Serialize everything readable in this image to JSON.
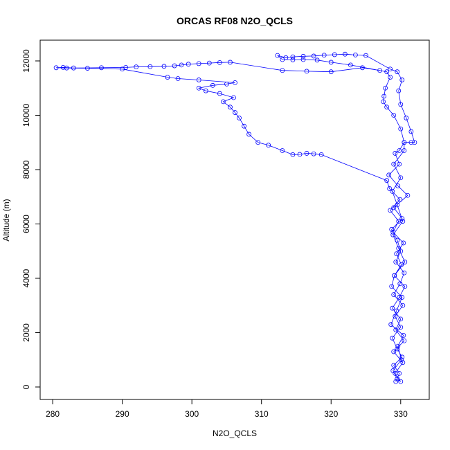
{
  "chart_data": {
    "type": "scatter",
    "connected": true,
    "title": "ORCAS RF08 N2O_QCLS",
    "xlabel": "N2O_QCLS",
    "ylabel": "Altitude (m)",
    "color": "#0000ff",
    "xlim": [
      278.2,
      334.1
    ],
    "ylim": [
      -459,
      12764
    ],
    "xticks": [
      280,
      290,
      300,
      310,
      320,
      330
    ],
    "yticks": [
      0,
      2000,
      4000,
      6000,
      8000,
      10000,
      12000
    ],
    "x": [
      329.3,
      329.8,
      329.0,
      330.2,
      329.5,
      328.8,
      330.0,
      329.2,
      330.3,
      329.0,
      329.9,
      330.5,
      329.3,
      330.0,
      329.5,
      328.7,
      330.2,
      329.0,
      331.0,
      329.6,
      328.3,
      329.8,
      329.2,
      329.8,
      330.5,
      331.5,
      332.0,
      331.5,
      330.8,
      330.0,
      329.7,
      330.2,
      329.5,
      328.5,
      325,
      323.5,
      322,
      320.5,
      319,
      317.5,
      316,
      314.5,
      313.5,
      312.3,
      313,
      314.5,
      316,
      318,
      320,
      322.8,
      328,
      328.5,
      327.8,
      327.6,
      327.5,
      328,
      329,
      330,
      330.5,
      330.5,
      329.0,
      330.0,
      328.8,
      329.5,
      330.3,
      328.9,
      329.7,
      330.6,
      329.1,
      328.7,
      330.2,
      329.4,
      328.6,
      330.4,
      329.6,
      330.1,
      328.9,
      329.5,
      330.0,
      329.2,
      330.3,
      329.0,
      330.5,
      329.3,
      330.0,
      328.8,
      329.8,
      330.6,
      329.1,
      330.1,
      329.4,
      330.4,
      328.9,
      329.7,
      328.5,
      329.9,
      328.4,
      328.0,
      318.6,
      317.5,
      316.5,
      315.5,
      314.5,
      313,
      311,
      309.5,
      308.2,
      307.5,
      306.8,
      306.2,
      305.5,
      304.5,
      306,
      304,
      302,
      301,
      303,
      305,
      306.2,
      301,
      298,
      296.5,
      290,
      285,
      282,
      280.5,
      281.5,
      283,
      287,
      290.5,
      292,
      294,
      296,
      297.5,
      298.5,
      299.5,
      301,
      302.5,
      304,
      305.5,
      313,
      316.5,
      320,
      324.5,
      327
    ],
    "values": [
      200,
      500,
      800,
      1100,
      1400,
      1800,
      2200,
      2600,
      3000,
      3400,
      3800,
      4200,
      4600,
      5000,
      5400,
      5800,
      6200,
      6600,
      7050,
      7400,
      7800,
      8200,
      8600,
      8700,
      9000,
      9000,
      9000,
      9400,
      9900,
      10400,
      10900,
      11300,
      11600,
      11700,
      12200,
      12220,
      12250,
      12230,
      12210,
      12180,
      12170,
      12150,
      12120,
      12200,
      12050,
      12040,
      12050,
      12030,
      11950,
      11850,
      11600,
      11400,
      11000,
      10700,
      10500,
      10300,
      10000,
      9500,
      9000,
      8700,
      8200,
      7700,
      7200,
      6700,
      6100,
      5600,
      5100,
      4600,
      4100,
      3700,
      3300,
      2800,
      2300,
      1900,
      1500,
      1000,
      600,
      300,
      200,
      500,
      900,
      1300,
      1700,
      2100,
      2500,
      2900,
      3300,
      3700,
      4100,
      4500,
      4900,
      5300,
      5700,
      6100,
      6500,
      6900,
      7300,
      7600,
      8550,
      8580,
      8600,
      8560,
      8550,
      8700,
      8900,
      9000,
      9300,
      9600,
      9900,
      10100,
      10300,
      10500,
      10650,
      10800,
      10900,
      11000,
      11100,
      11150,
      11200,
      11300,
      11350,
      11400,
      11700,
      11730,
      11740,
      11750,
      11760,
      11740,
      11750,
      11760,
      11780,
      11790,
      11800,
      11820,
      11850,
      11880,
      11900,
      11920,
      11940,
      11950,
      11650,
      11620,
      11600,
      11750,
      11650
    ]
  }
}
